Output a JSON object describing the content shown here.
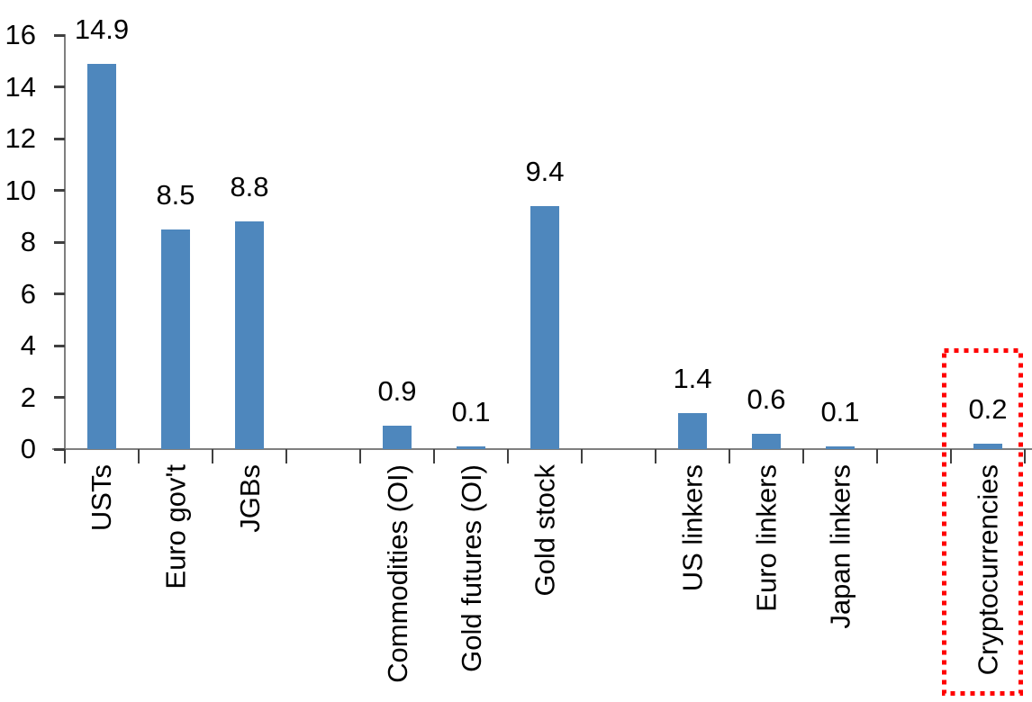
{
  "chart_data": {
    "type": "bar",
    "title": "",
    "xlabel": "",
    "ylabel": "",
    "categories": [
      "USTs",
      "Euro gov't",
      "JGBs",
      "Commodities (OI)",
      "Gold futures (OI)",
      "Gold stock",
      "US linkers",
      "Euro linkers",
      "Japan linkers",
      "Cryptocurrencies"
    ],
    "values": [
      14.9,
      8.5,
      8.8,
      0.9,
      0.1,
      9.4,
      1.4,
      0.6,
      0.1,
      0.2
    ],
    "value_labels": [
      "14.9",
      "8.5",
      "8.8",
      "0.9",
      "0.1",
      "9.4",
      "1.4",
      "0.6",
      "0.1",
      "0.2"
    ],
    "slot_indices": [
      0,
      1,
      2,
      4,
      5,
      6,
      8,
      9,
      10,
      12
    ],
    "num_slots": 13,
    "ylim": [
      0,
      16
    ],
    "y_ticks": [
      0,
      2,
      4,
      6,
      8,
      10,
      12,
      14,
      16
    ],
    "grid": false,
    "legend": "none",
    "bar_color": "#4e87bd",
    "axis_color": "#7f7f7f",
    "tick_color": "#404040",
    "text_color": "#000000",
    "highlight": {
      "category": "Cryptocurrencies",
      "box_color": "#ff0000",
      "box_style": "dotted"
    }
  }
}
